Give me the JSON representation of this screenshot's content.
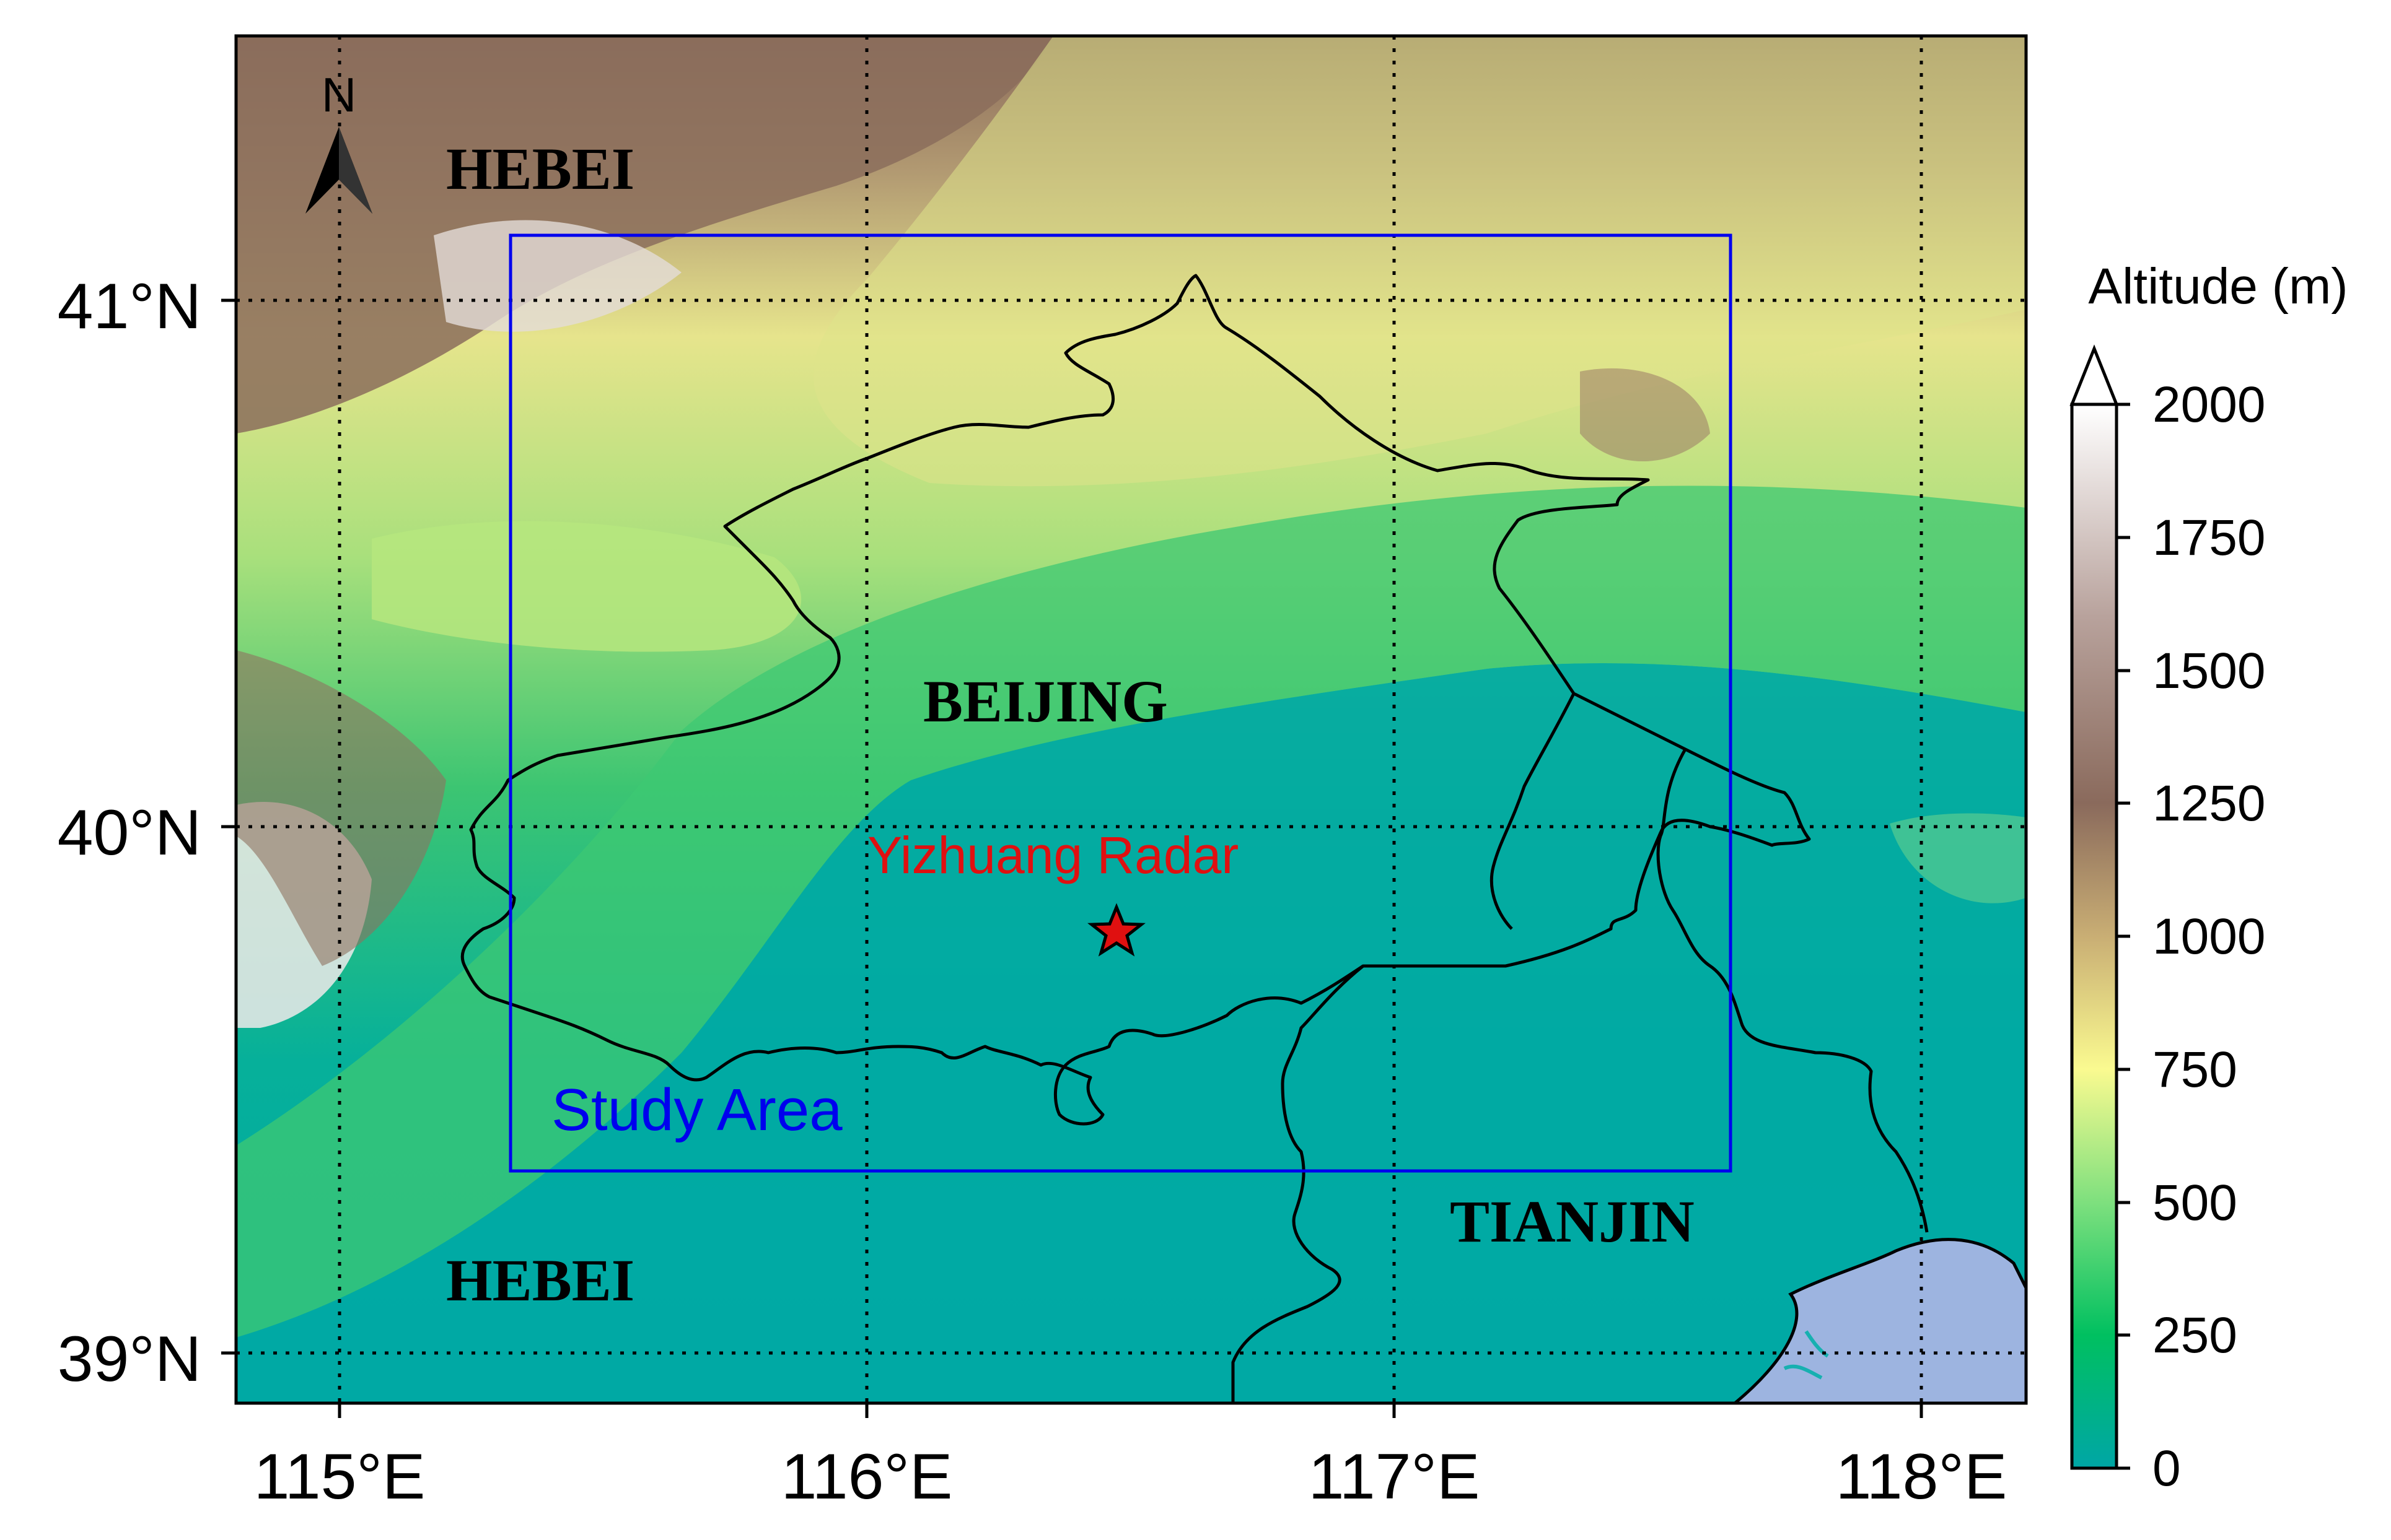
{
  "map": {
    "longitude_ticks": [
      "115°E",
      "116°E",
      "117°E",
      "118°E"
    ],
    "latitude_ticks": [
      "41°N",
      "40°N",
      "39°N"
    ],
    "regions": {
      "hebei_north": "HEBEI",
      "hebei_south": "HEBEI",
      "beijing": "BEIJING",
      "tianjin": "TIANJIN"
    },
    "radar_label": "Yizhuang Radar",
    "study_area_label": "Study Area",
    "north_arrow_label": "N",
    "colors": {
      "study_area": "#0000ee",
      "radar": "#e01010",
      "boundary": "#000000",
      "sea": "#9db4e0",
      "grid": "#000000"
    },
    "icons": [
      "north-arrow-icon",
      "star-icon"
    ]
  },
  "colorbar": {
    "title": "Altitude (m)",
    "ticks": [
      "0",
      "250",
      "500",
      "750",
      "1000",
      "1250",
      "1500",
      "1750",
      "2000"
    ],
    "colormap_stops": [
      "#00a6a6",
      "#00c060",
      "#7ee07e",
      "#fafa90",
      "#c9ae74",
      "#8a6a5c",
      "#b8a29c",
      "#ffffff"
    ],
    "extend": "max"
  }
}
